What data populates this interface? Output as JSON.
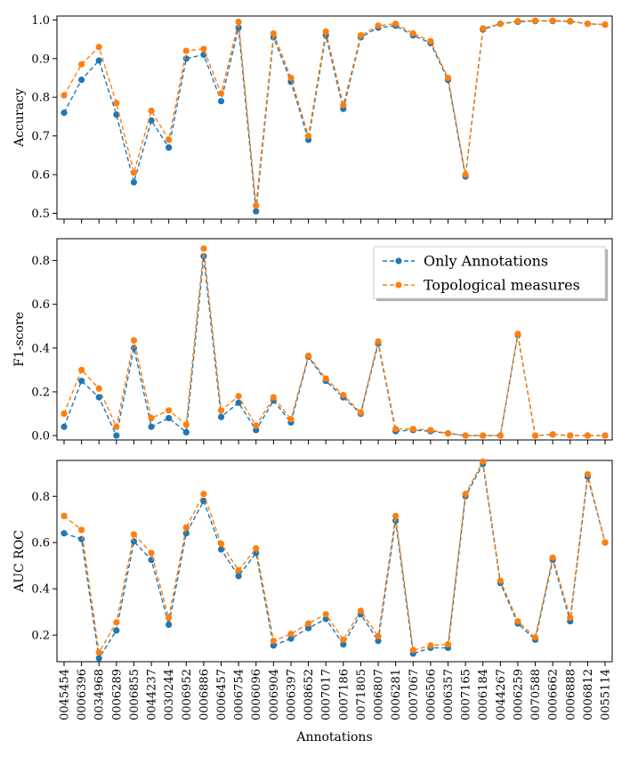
{
  "chart_data": {
    "type": "line",
    "xlabel": "Annotations",
    "categories": [
      "0045454",
      "0006396",
      "0034968",
      "0006289",
      "0006855",
      "0044237",
      "0030244",
      "0006952",
      "0006886",
      "0006457",
      "0006754",
      "0006096",
      "0006904",
      "0006397",
      "0008652",
      "0007017",
      "0007186",
      "0071805",
      "0006807",
      "0006281",
      "0007067",
      "0006506",
      "0006357",
      "0007165",
      "0006184",
      "0044267",
      "0006259",
      "0070588",
      "0006662",
      "0006888",
      "0006812",
      "0055114"
    ],
    "colors": {
      "Only Annotations": "#1f77b4",
      "Topological measures": "#ff7f0e"
    },
    "legend": {
      "entries": [
        "Only Annotations",
        "Topological measures"
      ],
      "placement": "upper-right of middle panel"
    },
    "panels": [
      {
        "ylabel": "Accuracy",
        "ylim": [
          0.485,
          1.01
        ],
        "yticks": [
          0.5,
          0.6,
          0.7,
          0.8,
          0.9,
          1.0
        ],
        "ytick_labels": [
          "0.5",
          "0.6",
          "0.7",
          "0.8",
          "0.9",
          "1.0"
        ],
        "series": [
          {
            "name": "Only Annotations",
            "values": [
              0.76,
              0.845,
              0.895,
              0.755,
              0.58,
              0.74,
              0.67,
              0.9,
              0.91,
              0.79,
              0.98,
              0.505,
              0.955,
              0.84,
              0.69,
              0.96,
              0.77,
              0.955,
              0.98,
              0.985,
              0.96,
              0.94,
              0.845,
              0.595,
              0.975,
              0.99,
              0.995,
              0.997,
              0.997,
              0.996,
              0.99,
              0.988
            ]
          },
          {
            "name": "Topological measures",
            "values": [
              0.805,
              0.885,
              0.93,
              0.785,
              0.605,
              0.765,
              0.69,
              0.92,
              0.925,
              0.81,
              0.995,
              0.52,
              0.965,
              0.85,
              0.7,
              0.97,
              0.78,
              0.96,
              0.985,
              0.99,
              0.965,
              0.945,
              0.85,
              0.6,
              0.978,
              0.99,
              0.997,
              0.998,
              0.998,
              0.997,
              0.99,
              0.988
            ]
          }
        ]
      },
      {
        "ylabel": "F1-score",
        "ylim": [
          -0.02,
          0.9
        ],
        "yticks": [
          0.0,
          0.2,
          0.4,
          0.6,
          0.8
        ],
        "ytick_labels": [
          "0.0",
          "0.2",
          "0.4",
          "0.6",
          "0.8"
        ],
        "series": [
          {
            "name": "Only Annotations",
            "values": [
              0.04,
              0.25,
              0.175,
              0.0,
              0.4,
              0.04,
              0.08,
              0.015,
              0.82,
              0.085,
              0.15,
              0.025,
              0.16,
              0.06,
              0.36,
              0.25,
              0.175,
              0.1,
              0.42,
              0.02,
              0.025,
              0.02,
              0.01,
              0.0,
              0.0,
              0.0,
              0.46,
              0.0,
              0.005,
              0.0,
              0.0,
              0.0
            ]
          },
          {
            "name": "Topological measures",
            "values": [
              0.1,
              0.3,
              0.215,
              0.04,
              0.435,
              0.08,
              0.115,
              0.05,
              0.855,
              0.115,
              0.18,
              0.045,
              0.175,
              0.075,
              0.365,
              0.26,
              0.185,
              0.105,
              0.43,
              0.03,
              0.03,
              0.025,
              0.01,
              0.0,
              0.0,
              0.0,
              0.465,
              0.0,
              0.005,
              0.0,
              0.0,
              0.0
            ]
          }
        ]
      },
      {
        "ylabel": "AUC ROC",
        "ylim": [
          0.085,
          0.955
        ],
        "yticks": [
          0.2,
          0.4,
          0.6,
          0.8
        ],
        "ytick_labels": [
          "0.2",
          "0.4",
          "0.6",
          "0.8"
        ],
        "series": [
          {
            "name": "Only Annotations",
            "values": [
              0.64,
              0.615,
              0.1,
              0.22,
              0.605,
              0.525,
              0.245,
              0.64,
              0.78,
              0.57,
              0.455,
              0.555,
              0.155,
              0.185,
              0.23,
              0.27,
              0.16,
              0.29,
              0.175,
              0.695,
              0.12,
              0.145,
              0.145,
              0.8,
              0.94,
              0.425,
              0.25,
              0.18,
              0.525,
              0.26,
              0.885,
              0.6
            ]
          },
          {
            "name": "Topological measures",
            "values": [
              0.715,
              0.655,
              0.125,
              0.255,
              0.635,
              0.555,
              0.275,
              0.665,
              0.81,
              0.595,
              0.48,
              0.575,
              0.175,
              0.205,
              0.25,
              0.29,
              0.18,
              0.305,
              0.195,
              0.715,
              0.135,
              0.155,
              0.16,
              0.81,
              0.95,
              0.435,
              0.26,
              0.19,
              0.535,
              0.275,
              0.895,
              0.6
            ]
          }
        ]
      }
    ]
  }
}
